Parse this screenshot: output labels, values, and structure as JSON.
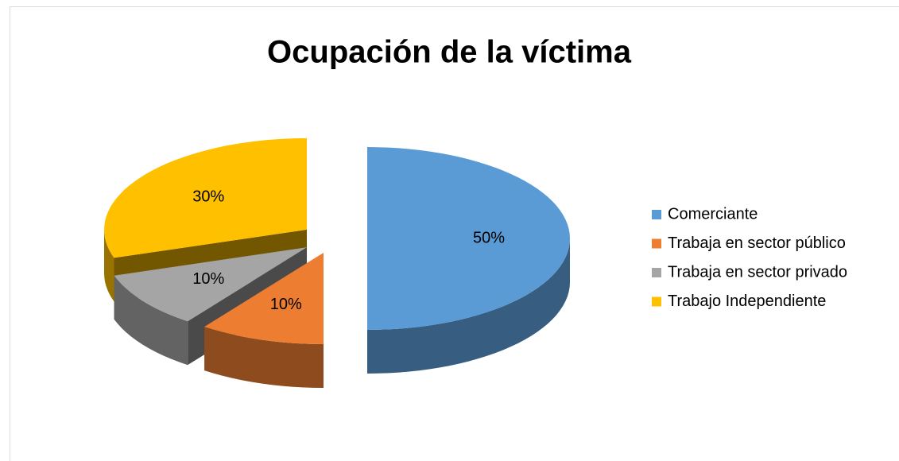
{
  "chart_data": {
    "type": "pie",
    "title": "Ocupación de la víctima",
    "categories": [
      "Comerciante",
      "Trabaja en sector público",
      "Trabaja en sector privado",
      "Trabajo Independiente"
    ],
    "values": [
      50,
      10,
      10,
      30
    ],
    "value_labels": [
      "50%",
      "10%",
      "10%",
      "30%"
    ],
    "colors": [
      "#5b9bd5",
      "#ed7d31",
      "#a5a5a5",
      "#ffc000"
    ],
    "legend": "right"
  }
}
